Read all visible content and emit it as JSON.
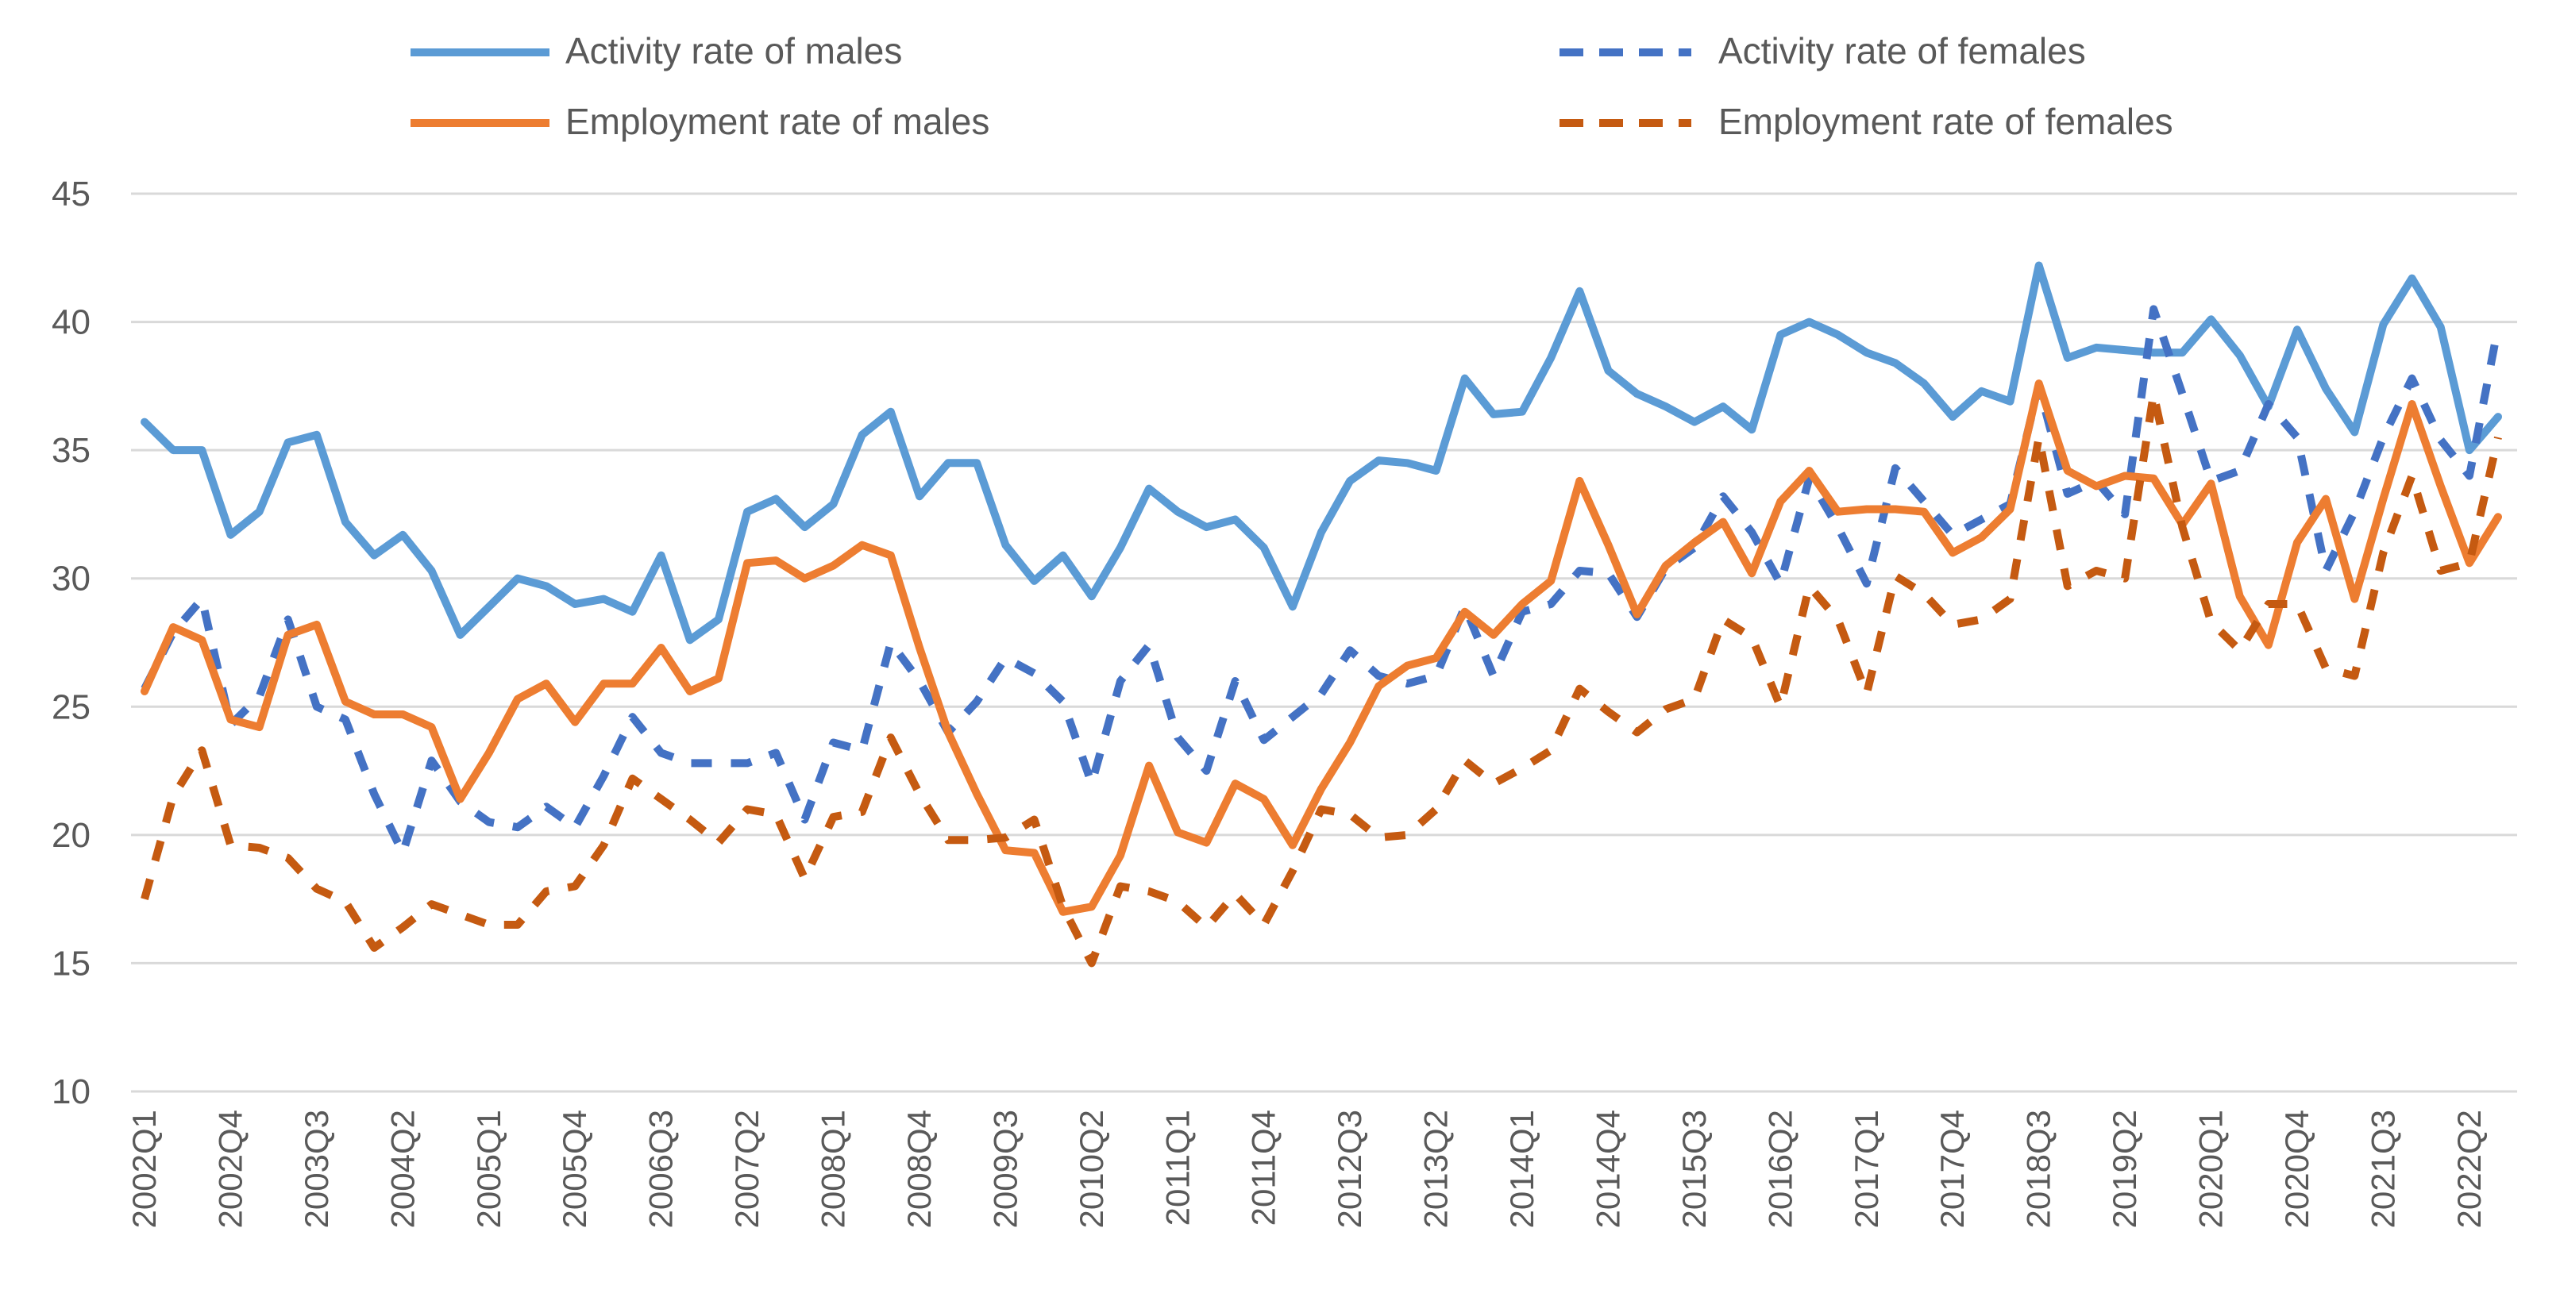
{
  "chart_data": {
    "type": "line",
    "title": "",
    "xlabel": "",
    "ylabel": "",
    "ylim": [
      10,
      45
    ],
    "yticks": [
      10,
      15,
      20,
      25,
      30,
      35,
      40,
      45
    ],
    "grid": true,
    "legend_position": "top",
    "x_start": "2002Q1",
    "x_end": "2022Q3",
    "x_tick_labels": [
      "2002Q1",
      "2002Q4",
      "2003Q3",
      "2004Q2",
      "2005Q1",
      "2005Q4",
      "2006Q3",
      "2007Q2",
      "2008Q1",
      "2008Q4",
      "2009Q3",
      "2010Q2",
      "2011Q1",
      "2011Q4",
      "2012Q3",
      "2013Q2",
      "2014Q1",
      "2014Q4",
      "2015Q3",
      "2016Q2",
      "2017Q1",
      "2017Q4",
      "2018Q3",
      "2019Q2",
      "2020Q1",
      "2020Q4",
      "2021Q3",
      "2022Q2"
    ],
    "series": [
      {
        "name": "Activity rate of males",
        "color": "#5B9BD5",
        "dashed": false,
        "values": [
          36.1,
          35.0,
          35.0,
          31.7,
          32.6,
          35.3,
          35.6,
          32.2,
          30.9,
          31.7,
          30.3,
          27.8,
          28.9,
          30.0,
          29.7,
          29.0,
          29.2,
          28.7,
          30.9,
          27.6,
          28.4,
          32.6,
          33.1,
          32.0,
          32.9,
          35.6,
          36.5,
          33.2,
          34.5,
          34.5,
          31.3,
          29.9,
          30.9,
          29.3,
          31.2,
          33.5,
          32.6,
          32.0,
          32.3,
          31.2,
          28.9,
          31.8,
          33.8,
          34.6,
          34.5,
          34.2,
          37.8,
          36.4,
          36.5,
          38.6,
          41.2,
          38.1,
          37.2,
          36.7,
          36.1,
          36.7,
          35.8,
          39.5,
          40.0,
          39.5,
          38.8,
          38.4,
          37.6,
          36.3,
          37.3,
          36.9,
          42.2,
          38.6,
          39.0,
          38.9,
          38.8,
          38.8,
          40.1,
          38.7,
          36.7,
          39.7,
          37.4,
          35.7,
          39.9,
          41.7,
          39.8,
          35.0,
          36.3
        ]
      },
      {
        "name": "Activity rate of females",
        "color": "#4472C4",
        "dashed": true,
        "values": [
          25.7,
          27.9,
          29.2,
          24.3,
          25.4,
          28.4,
          25.0,
          24.5,
          21.6,
          19.3,
          22.9,
          21.3,
          20.5,
          20.3,
          21.1,
          20.3,
          22.3,
          24.6,
          23.2,
          22.8,
          22.8,
          22.8,
          23.2,
          20.6,
          23.6,
          23.3,
          27.5,
          26.0,
          24.0,
          25.2,
          26.9,
          26.3,
          25.2,
          22.0,
          26.0,
          27.4,
          23.8,
          22.5,
          26.0,
          23.7,
          24.6,
          25.5,
          27.2,
          26.2,
          25.9,
          26.2,
          28.9,
          26.2,
          28.7,
          29.0,
          30.3,
          30.2,
          28.5,
          30.4,
          31.2,
          33.2,
          31.8,
          29.8,
          33.9,
          32.0,
          29.8,
          34.3,
          33.0,
          31.7,
          32.3,
          32.9,
          37.5,
          33.3,
          33.8,
          32.5,
          40.5,
          37.2,
          33.8,
          34.2,
          36.8,
          35.5,
          30.3,
          32.6,
          35.5,
          37.8,
          35.4,
          34.0,
          39.8
        ]
      },
      {
        "name": "Employment rate of males",
        "color": "#ED7D31",
        "dashed": false,
        "values": [
          25.6,
          28.1,
          27.6,
          24.5,
          24.2,
          27.8,
          28.2,
          25.2,
          24.7,
          24.7,
          24.2,
          21.4,
          23.2,
          25.3,
          25.9,
          24.4,
          25.9,
          25.9,
          27.3,
          25.6,
          26.1,
          30.6,
          30.7,
          30.0,
          30.5,
          31.3,
          30.9,
          27.3,
          24.0,
          21.6,
          19.4,
          19.3,
          17.0,
          17.2,
          19.2,
          22.7,
          20.1,
          19.7,
          22.0,
          21.4,
          19.6,
          21.8,
          23.6,
          25.8,
          26.6,
          26.9,
          28.7,
          27.8,
          29.0,
          29.9,
          33.8,
          31.3,
          28.6,
          30.5,
          31.4,
          32.2,
          30.2,
          33.0,
          34.2,
          32.6,
          32.7,
          32.7,
          32.6,
          31.0,
          31.6,
          32.7,
          37.6,
          34.2,
          33.6,
          34.0,
          33.9,
          32.1,
          33.7,
          29.3,
          27.4,
          31.4,
          33.1,
          29.2,
          33.1,
          36.8,
          33.6,
          30.6,
          32.4
        ]
      },
      {
        "name": "Employment rate of females",
        "color": "#C55A11",
        "dashed": true,
        "values": [
          17.5,
          21.5,
          23.3,
          19.6,
          19.5,
          19.1,
          17.9,
          17.4,
          15.6,
          16.4,
          17.3,
          16.9,
          16.5,
          16.5,
          17.8,
          18.0,
          19.6,
          22.2,
          21.4,
          20.6,
          19.7,
          21.0,
          20.8,
          18.3,
          20.7,
          20.9,
          23.8,
          21.6,
          19.8,
          19.8,
          19.9,
          20.6,
          17.2,
          15.0,
          18.0,
          17.8,
          17.4,
          16.4,
          17.7,
          16.5,
          18.6,
          21.0,
          20.8,
          19.9,
          20.0,
          21.0,
          22.9,
          22.0,
          22.6,
          23.3,
          25.7,
          24.8,
          24.0,
          24.9,
          25.3,
          28.4,
          27.7,
          25.0,
          29.7,
          28.4,
          25.5,
          30.1,
          29.4,
          28.2,
          28.4,
          29.2,
          35.5,
          29.7,
          30.3,
          30.0,
          37.2,
          32.0,
          28.3,
          27.2,
          29.0,
          29.0,
          26.5,
          26.2,
          31.0,
          34.0,
          30.3,
          30.6,
          35.5
        ]
      }
    ]
  }
}
